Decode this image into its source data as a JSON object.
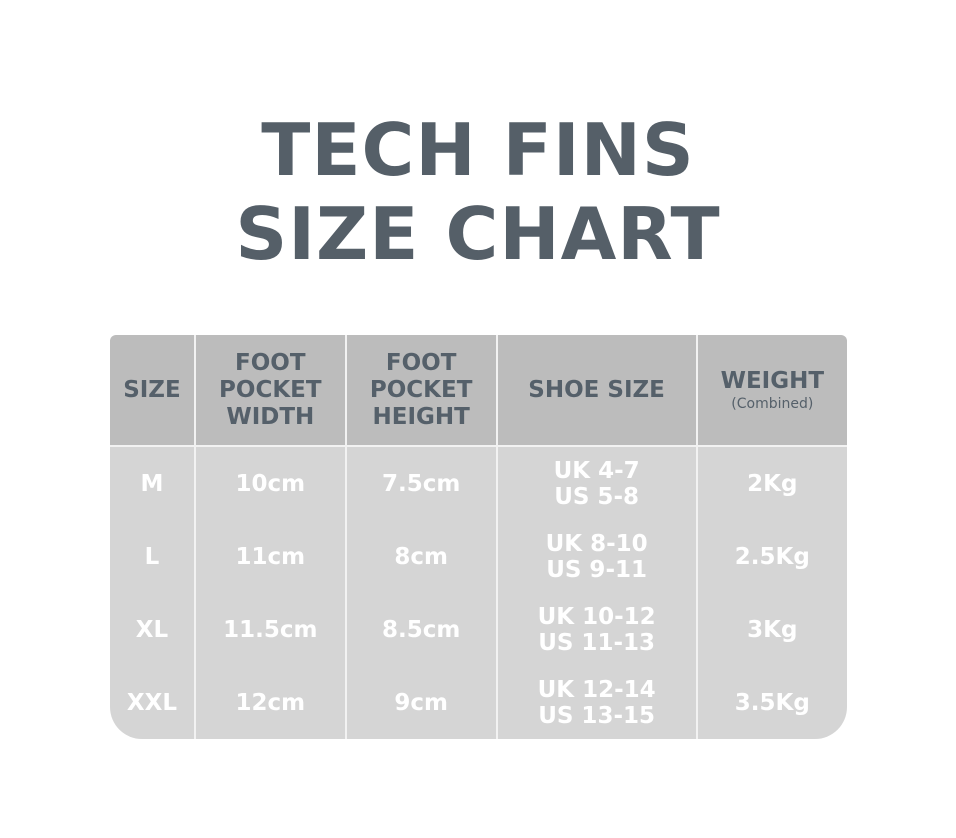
{
  "title": {
    "line1": "TECH FINS",
    "line2": "SIZE CHART"
  },
  "table": {
    "headers": [
      {
        "lines": [
          "SIZE"
        ]
      },
      {
        "lines": [
          "FOOT",
          "POCKET",
          "WIDTH"
        ]
      },
      {
        "lines": [
          "FOOT",
          "POCKET",
          "HEIGHT"
        ]
      },
      {
        "lines": [
          "SHOE SIZE"
        ]
      },
      {
        "lines": [
          "WEIGHT"
        ],
        "sub": "(Combined)"
      }
    ],
    "rows": [
      {
        "size": "M",
        "width": "10cm",
        "height": "7.5cm",
        "shoe": [
          "UK 4-7",
          "US 5-8"
        ],
        "weight": "2Kg"
      },
      {
        "size": "L",
        "width": "11cm",
        "height": "8cm",
        "shoe": [
          "UK 8-10",
          "US 9-11"
        ],
        "weight": "2.5Kg"
      },
      {
        "size": "XL",
        "width": "11.5cm",
        "height": "8.5cm",
        "shoe": [
          "UK 10-12",
          "US 11-13"
        ],
        "weight": "3Kg"
      },
      {
        "size": "XXL",
        "width": "12cm",
        "height": "9cm",
        "shoe": [
          "UK 12-14",
          "US 13-15"
        ],
        "weight": "3.5Kg"
      }
    ]
  },
  "colors": {
    "title": "#555f68",
    "header_bg": "#bcbcbc",
    "body_bg": "#d5d5d5",
    "body_text": "#ffffff"
  }
}
